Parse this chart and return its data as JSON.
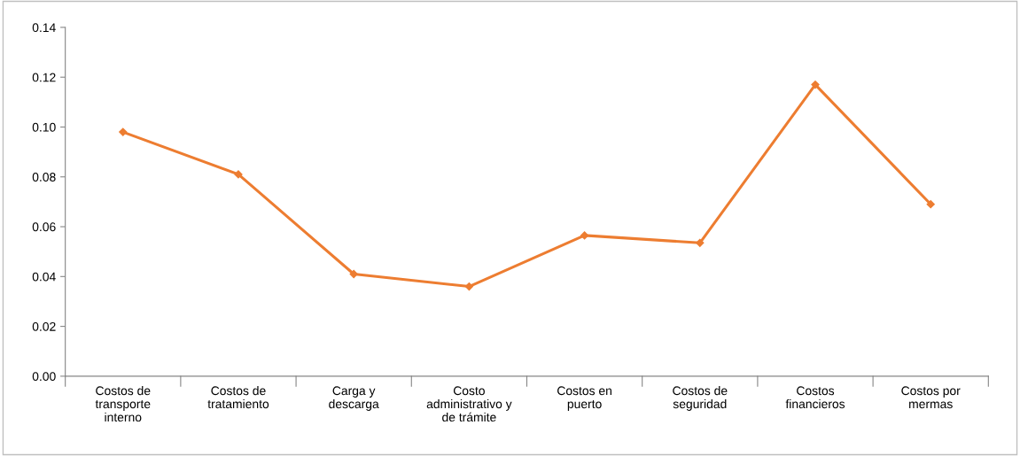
{
  "chart_data": {
    "type": "line",
    "categories": [
      "Costos de\ntransporte\ninterno",
      "Costos de\ntratamiento",
      "Carga y\ndescarga",
      "Costo\nadministrativo y\nde trámite",
      "Costos en\npuerto",
      "Costos de\nseguridad",
      "Costos\nfinancieros",
      "Costos por\nmermas"
    ],
    "series": [
      {
        "color": "#ed7d31",
        "values": [
          0.098,
          0.081,
          0.041,
          0.036,
          0.0565,
          0.0535,
          0.117,
          0.069
        ]
      }
    ],
    "ylim": [
      0,
      0.14
    ],
    "yticks": [
      {
        "value": 0,
        "label": "0.00"
      },
      {
        "value": 0.02,
        "label": "0.02"
      },
      {
        "value": 0.04,
        "label": "0.04"
      },
      {
        "value": 0.06,
        "label": "0.06"
      },
      {
        "value": 0.08,
        "label": "0.08"
      },
      {
        "value": 0.1,
        "label": "0.10"
      },
      {
        "value": 0.12,
        "label": "0.12"
      },
      {
        "value": 0.14,
        "label": "0.14"
      }
    ],
    "grid": false,
    "marker": "diamond",
    "line_style": "solid"
  }
}
